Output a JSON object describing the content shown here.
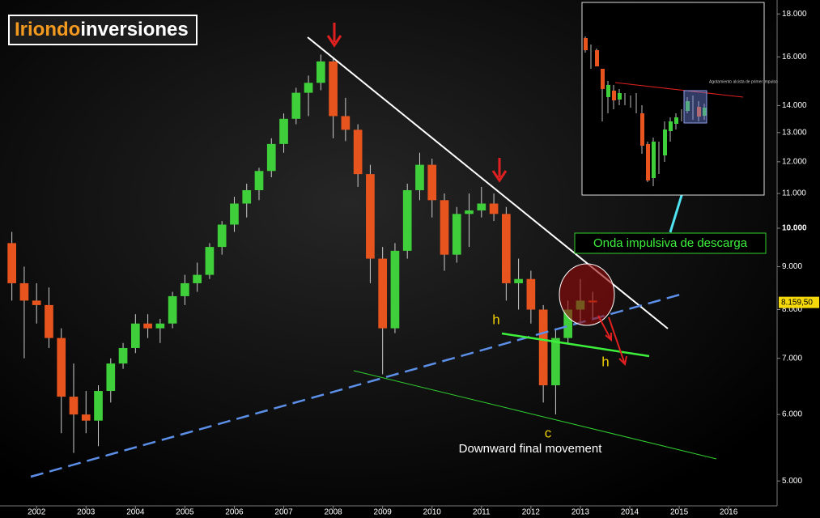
{
  "logo": {
    "part1": "Iriondo",
    "part2": "inversiones"
  },
  "chart_data": {
    "type": "candlestick",
    "log_scale": true,
    "grid": false,
    "up_color": "#3fcf3a",
    "down_color": "#e8541e",
    "xlim": [
      2001.26,
      2016.98
    ],
    "xticks": [
      2002,
      2003,
      2004,
      2005,
      2006,
      2007,
      2008,
      2009,
      2010,
      2011,
      2012,
      2013,
      2014,
      2015,
      2016
    ],
    "ylim": [
      4670,
      18700
    ],
    "yticks": [
      {
        "value": 5000,
        "label": "5.000"
      },
      {
        "value": 6000,
        "label": "6.000"
      },
      {
        "value": 7000,
        "label": "7.000"
      },
      {
        "value": 8000,
        "label": "8.000"
      },
      {
        "value": 9000,
        "label": "9.000"
      },
      {
        "value": 10000,
        "label": "10.000"
      },
      {
        "value": 11000,
        "label": "11.000"
      },
      {
        "value": 12000,
        "label": "12.000"
      },
      {
        "value": 13000,
        "label": "13.000"
      },
      {
        "value": 14000,
        "label": "14.000"
      },
      {
        "value": 16000,
        "label": "16.000"
      },
      {
        "value": 18000,
        "label": "18.000"
      }
    ],
    "last_price": {
      "value": 8159.5,
      "label": "8.159,50"
    },
    "x": [
      2001.5,
      2001.75,
      2002,
      2002.25,
      2002.5,
      2002.75,
      2003,
      2003.25,
      2003.5,
      2003.75,
      2004,
      2004.25,
      2004.5,
      2004.75,
      2005,
      2005.25,
      2005.5,
      2005.75,
      2006,
      2006.25,
      2006.5,
      2006.75,
      2007,
      2007.25,
      2007.5,
      2007.75,
      2008,
      2008.25,
      2008.5,
      2008.75,
      2009,
      2009.25,
      2009.5,
      2009.75,
      2010,
      2010.25,
      2010.5,
      2010.75,
      2011,
      2011.25,
      2011.5,
      2011.75,
      2012,
      2012.25,
      2012.5,
      2012.75,
      2013,
      2013.25
    ],
    "open": [
      9600,
      8600,
      8200,
      8100,
      7400,
      6300,
      6000,
      5900,
      6400,
      6900,
      7200,
      7700,
      7600,
      7700,
      8300,
      8600,
      8800,
      9500,
      10100,
      10700,
      11100,
      11700,
      12600,
      13500,
      14500,
      14900,
      15800,
      13600,
      13100,
      11600,
      9200,
      7600,
      9400,
      11100,
      11900,
      10800,
      9300,
      10400,
      10500,
      10700,
      10400,
      8600,
      8700,
      8000,
      6500,
      7400,
      8000,
      8200
    ],
    "high": [
      9900,
      9000,
      8600,
      8500,
      7600,
      6900,
      6400,
      6500,
      7000,
      7300,
      7900,
      7900,
      7800,
      8400,
      8800,
      9100,
      9600,
      10200,
      10900,
      11300,
      11800,
      12800,
      13700,
      14700,
      15200,
      16100,
      16000,
      14300,
      13300,
      11900,
      9500,
      9600,
      11300,
      12300,
      12100,
      11000,
      10600,
      11000,
      11200,
      11000,
      10600,
      9200,
      8900,
      8100,
      7600,
      8200,
      8700,
      8400
    ],
    "low": [
      8200,
      7000,
      7700,
      7200,
      5700,
      5400,
      5700,
      5500,
      6200,
      6800,
      7100,
      7400,
      7300,
      7600,
      8100,
      8400,
      8700,
      9300,
      9900,
      10300,
      10800,
      11500,
      12300,
      13300,
      13600,
      14600,
      12800,
      12700,
      11200,
      8600,
      6700,
      7500,
      9200,
      10800,
      10300,
      8900,
      9100,
      9500,
      10300,
      10200,
      8200,
      8000,
      7700,
      6200,
      6000,
      7300,
      7700,
      7800
    ],
    "close": [
      8600,
      8200,
      8100,
      7400,
      6300,
      6000,
      5900,
      6400,
      6900,
      7200,
      7700,
      7600,
      7700,
      8300,
      8600,
      8800,
      9500,
      10100,
      10700,
      11100,
      11700,
      12600,
      13500,
      14500,
      14900,
      15800,
      13600,
      13100,
      11600,
      9200,
      7600,
      9400,
      11100,
      11900,
      10800,
      9300,
      10400,
      10500,
      10700,
      10400,
      8600,
      8700,
      8000,
      6500,
      7400,
      8000,
      8200,
      8159.5
    ],
    "annotations": [
      "h",
      "h",
      "c",
      "Downward final movement",
      "Onda impulsiva de descarga",
      "Agotamiento alcista de primer impulso"
    ]
  }
}
